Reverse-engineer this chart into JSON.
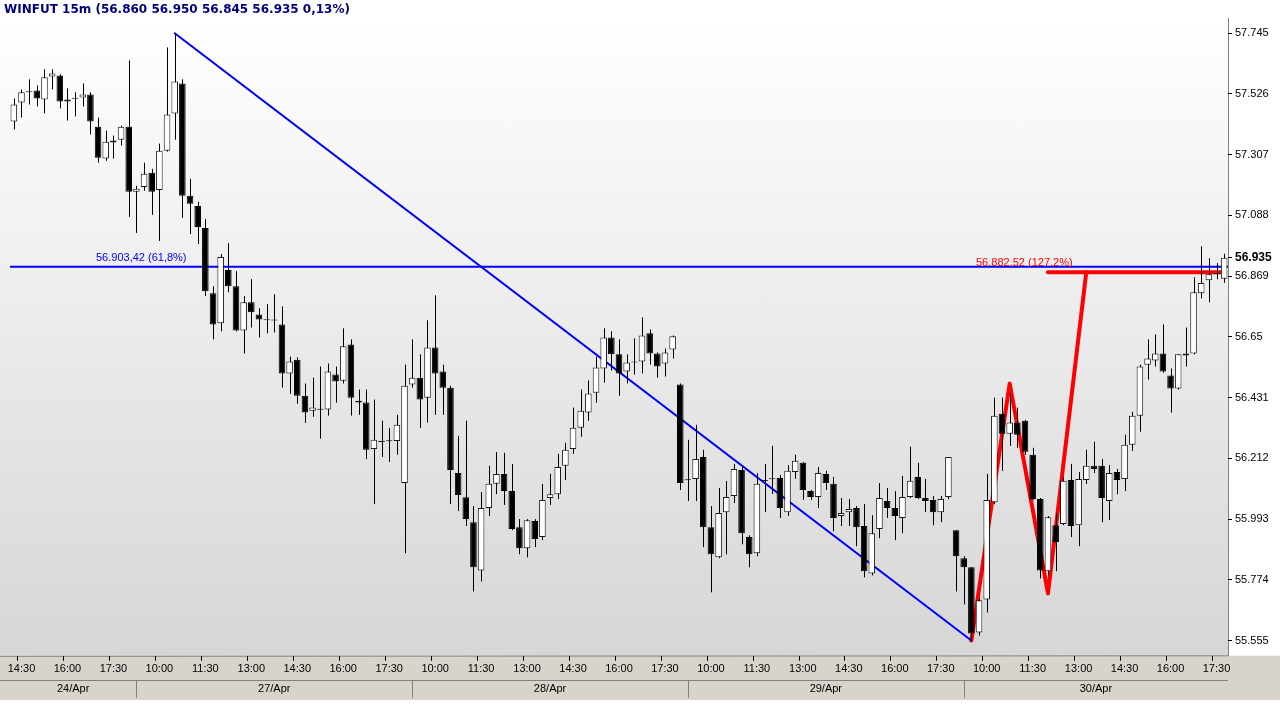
{
  "chart_data": {
    "type": "candlestick",
    "title": "WINFUT 15m (56.860 56.950 56.845 56.935 0,13%)",
    "categories": [
      null,
      "14:30",
      null,
      null,
      null,
      null,
      null,
      "16:00",
      null,
      null,
      null,
      null,
      null,
      "17:30",
      null,
      null,
      null,
      null,
      null,
      "10:00",
      null,
      null,
      null,
      null,
      null,
      "11:30",
      null,
      null,
      null,
      null,
      null,
      "13:00",
      null,
      null,
      null,
      null,
      null,
      "14:30",
      null,
      null,
      null,
      null,
      null,
      "16:00",
      null,
      null,
      null,
      null,
      null,
      "17:30",
      null,
      null,
      null,
      null,
      null,
      "10:00",
      null,
      null,
      null,
      null,
      null,
      "11:30",
      null,
      null,
      null,
      null,
      null,
      "13:00",
      null,
      null,
      null,
      null,
      null,
      "14:30",
      null,
      null,
      null,
      null,
      null,
      "16:00",
      null,
      null,
      null,
      null,
      null,
      "17:30",
      null,
      null,
      null,
      null,
      null,
      "10:00",
      null,
      null,
      null,
      null,
      null,
      "11:30",
      null,
      null,
      null,
      null,
      null,
      "13:00",
      null,
      null,
      null,
      null,
      null,
      "14:30",
      null,
      null,
      null,
      null,
      null,
      "16:00",
      null,
      null,
      null,
      null,
      null,
      "17:30",
      null,
      null,
      null,
      null,
      null,
      "10:00",
      null,
      null,
      null,
      null,
      null,
      "11:30",
      null,
      null,
      null,
      null,
      null,
      "13:00",
      null,
      null,
      null,
      null,
      null,
      "14:30",
      null,
      null,
      null,
      null,
      null,
      "16:00",
      null,
      null,
      null,
      null,
      null,
      "17:30",
      null
    ],
    "ohlc": [
      [
        57.427,
        57.51,
        57.398,
        57.488
      ],
      [
        57.495,
        57.542,
        57.441,
        57.532
      ],
      [
        57.535,
        57.579,
        57.488,
        57.532
      ],
      [
        57.539,
        57.557,
        57.481,
        57.51
      ],
      [
        57.506,
        57.615,
        57.456,
        57.586
      ],
      [
        57.589,
        57.615,
        57.542,
        57.6
      ],
      [
        57.593,
        57.597,
        57.474,
        57.499
      ],
      [
        57.499,
        57.546,
        57.43,
        57.506
      ],
      [
        57.51,
        57.532,
        57.445,
        57.509
      ],
      [
        57.513,
        57.564,
        57.481,
        57.524
      ],
      [
        57.524,
        57.532,
        57.38,
        57.427
      ],
      [
        57.408,
        57.441,
        57.278,
        57.296
      ],
      [
        57.293,
        57.394,
        57.285,
        57.354
      ],
      [
        57.351,
        57.376,
        57.293,
        57.358
      ],
      [
        57.361,
        57.412,
        57.34,
        57.408
      ],
      [
        57.408,
        57.647,
        57.083,
        57.173
      ],
      [
        57.173,
        57.195,
        57.025,
        57.184
      ],
      [
        57.191,
        57.278,
        57.177,
        57.238
      ],
      [
        57.242,
        57.256,
        57.09,
        57.173
      ],
      [
        57.18,
        57.347,
        56.996,
        57.321
      ],
      [
        57.321,
        57.694,
        57.318,
        57.452
      ],
      [
        57.456,
        57.745,
        57.361,
        57.571
      ],
      [
        57.564,
        57.579,
        57.079,
        57.159
      ],
      [
        57.159,
        57.22,
        57.021,
        57.13
      ],
      [
        57.122,
        57.137,
        56.985,
        57.046
      ],
      [
        57.043,
        57.075,
        56.797,
        56.815
      ],
      [
        56.807,
        56.833,
        56.641,
        56.695
      ],
      [
        56.699,
        56.949,
        56.67,
        56.938
      ],
      [
        56.891,
        56.988,
        56.811,
        56.833
      ],
      [
        56.833,
        56.887,
        56.67,
        56.673
      ],
      [
        56.673,
        56.797,
        56.59,
        56.775
      ],
      [
        56.775,
        56.858,
        56.684,
        56.739
      ],
      [
        56.731,
        56.753,
        56.648,
        56.713
      ],
      [
        56.713,
        56.768,
        56.663,
        56.71
      ],
      [
        56.71,
        56.804,
        56.666,
        56.709
      ],
      [
        56.695,
        56.76,
        56.467,
        56.518
      ],
      [
        56.518,
        56.579,
        56.445,
        56.561
      ],
      [
        56.568,
        56.576,
        56.409,
        56.438
      ],
      [
        56.438,
        56.482,
        56.34,
        56.377
      ],
      [
        56.384,
        56.503,
        56.362,
        56.395
      ],
      [
        56.388,
        56.543,
        56.283,
        56.387
      ],
      [
        56.388,
        56.554,
        56.366,
        56.525
      ],
      [
        56.514,
        56.543,
        56.413,
        56.489
      ],
      [
        56.492,
        56.681,
        56.482,
        56.616
      ],
      [
        56.623,
        56.641,
        56.366,
        56.431
      ],
      [
        56.42,
        56.46,
        56.369,
        56.413
      ],
      [
        56.413,
        56.46,
        56.21,
        56.243
      ],
      [
        56.246,
        56.424,
        56.047,
        56.279
      ],
      [
        56.272,
        56.348,
        56.217,
        56.271
      ],
      [
        56.275,
        56.322,
        56.199,
        56.274
      ],
      [
        56.275,
        56.369,
        56.225,
        56.333
      ],
      [
        56.123,
        56.55,
        55.87,
        56.474
      ],
      [
        56.478,
        56.641,
        56.467,
        56.503
      ],
      [
        56.503,
        56.587,
        56.322,
        56.424
      ],
      [
        56.431,
        56.71,
        56.341,
        56.612
      ],
      [
        56.612,
        56.8,
        56.369,
        56.518
      ],
      [
        56.525,
        56.55,
        56.369,
        56.467
      ],
      [
        56.467,
        56.474,
        56.047,
        56.17
      ],
      [
        56.159,
        56.293,
        56.022,
        56.08
      ],
      [
        56.072,
        56.348,
        55.968,
        55.993
      ],
      [
        55.982,
        56.04,
        55.732,
        55.819
      ],
      [
        55.808,
        56.091,
        55.768,
        56.033
      ],
      [
        56.033,
        56.185,
        56.004,
        56.12
      ],
      [
        56.12,
        56.235,
        56.083,
        56.156
      ],
      [
        56.156,
        56.232,
        56.044,
        56.094
      ],
      [
        56.094,
        56.192,
        55.953,
        55.957
      ],
      [
        55.964,
        55.993,
        55.866,
        55.888
      ],
      [
        55.888,
        55.993,
        55.855,
        55.989
      ],
      [
        55.986,
        55.993,
        55.892,
        55.921
      ],
      [
        55.928,
        56.12,
        55.917,
        56.062
      ],
      [
        56.069,
        56.156,
        56.044,
        56.083
      ],
      [
        56.083,
        56.228,
        56.065,
        56.181
      ],
      [
        56.185,
        56.268,
        56.134,
        56.243
      ],
      [
        56.246,
        56.395,
        56.228,
        56.322
      ],
      [
        56.322,
        56.46,
        56.29,
        56.384
      ],
      [
        56.377,
        56.493,
        56.348,
        56.446
      ],
      [
        56.449,
        56.579,
        56.413,
        56.54
      ],
      [
        56.536,
        56.681,
        56.485,
        56.648
      ],
      [
        56.648,
        56.67,
        56.529,
        56.587
      ],
      [
        56.587,
        56.641,
        56.438,
        56.518
      ],
      [
        56.525,
        56.587,
        56.482,
        56.558
      ],
      [
        56.558,
        56.645,
        56.514,
        56.561
      ],
      [
        56.561,
        56.72,
        56.518,
        56.655
      ],
      [
        56.663,
        56.677,
        56.55,
        56.59
      ],
      [
        56.59,
        56.594,
        56.503,
        56.543
      ],
      [
        56.554,
        56.608,
        56.507,
        56.594
      ],
      [
        56.605,
        56.655,
        56.572,
        56.652
      ],
      [
        56.478,
        56.482,
        56.098,
        56.123
      ],
      [
        56.134,
        56.279,
        56.058,
        56.133
      ],
      [
        56.138,
        56.333,
        56.058,
        56.21
      ],
      [
        56.217,
        56.243,
        55.892,
        55.964
      ],
      [
        55.964,
        56.04,
        55.729,
        55.866
      ],
      [
        55.855,
        56.105,
        55.852,
        56.015
      ],
      [
        56.018,
        56.13,
        55.866,
        56.073
      ],
      [
        56.076,
        56.192,
        56.051,
        56.174
      ],
      [
        56.17,
        56.185,
        55.902,
        55.942
      ],
      [
        55.928,
        55.935,
        55.819,
        55.866
      ],
      [
        55.87,
        56.159,
        55.859,
        56.12
      ],
      [
        56.13,
        56.192,
        56.018,
        56.131
      ],
      [
        56.138,
        56.257,
        56.083,
        56.137
      ],
      [
        56.141,
        56.152,
        55.997,
        56.033
      ],
      [
        56.018,
        56.188,
        56.004,
        56.167
      ],
      [
        56.163,
        56.225,
        56.138,
        56.203
      ],
      [
        56.196,
        56.199,
        56.062,
        56.098
      ],
      [
        56.094,
        56.098,
        56.062,
        56.073
      ],
      [
        56.073,
        56.181,
        56.033,
        56.159
      ],
      [
        56.156,
        56.167,
        56.098,
        56.123
      ],
      [
        56.12,
        56.145,
        55.949,
        55.997
      ],
      [
        56.004,
        56.069,
        55.968,
        56.015
      ],
      [
        56.018,
        56.065,
        55.968,
        56.029
      ],
      [
        56.033,
        56.04,
        55.895,
        55.964
      ],
      [
        55.968,
        56.047,
        55.783,
        55.805
      ],
      [
        55.797,
        56.007,
        55.79,
        55.942
      ],
      [
        55.957,
        56.123,
        55.924,
        56.069
      ],
      [
        56.058,
        56.105,
        55.997,
        56.033
      ],
      [
        56.033,
        56.094,
        55.917,
        56.004
      ],
      [
        55.997,
        56.149,
        55.942,
        56.073
      ],
      [
        56.073,
        56.254,
        56.069,
        56.131
      ],
      [
        56.145,
        56.196,
        56.065,
        56.069
      ],
      [
        56.069,
        56.138,
        56.018,
        56.058
      ],
      [
        56.062,
        56.076,
        55.971,
        56.018
      ],
      [
        56.018,
        56.076,
        55.982,
        56.065
      ],
      [
        56.073,
        56.217,
        56.065,
        56.217
      ],
      [
        55.953,
        55.953,
        55.732,
        55.859
      ],
      [
        55.852,
        55.859,
        55.685,
        55.819
      ],
      [
        55.819,
        55.819,
        55.555,
        55.58
      ],
      [
        55.584,
        55.707,
        55.573,
        55.7
      ],
      [
        55.703,
        56.156,
        55.656,
        56.062
      ],
      [
        56.054,
        56.431,
        56.047,
        56.366
      ],
      [
        56.373,
        56.431,
        56.167,
        56.301
      ],
      [
        56.301,
        56.446,
        56.257,
        56.341
      ],
      [
        56.341,
        56.395,
        56.25,
        56.297
      ],
      [
        56.348,
        56.351,
        56.225,
        56.236
      ],
      [
        56.225,
        56.25,
        56.062,
        56.065
      ],
      [
        56.065,
        56.069,
        55.779,
        55.808
      ],
      [
        55.805,
        56.004,
        55.79,
        56.0
      ],
      [
        55.971,
        56.015,
        55.805,
        55.91
      ],
      [
        55.975,
        56.145,
        55.971,
        56.131
      ],
      [
        56.134,
        56.192,
        55.928,
        55.968
      ],
      [
        55.971,
        56.163,
        55.895,
        56.138
      ],
      [
        56.134,
        56.243,
        56.12,
        56.185
      ],
      [
        56.185,
        56.272,
        56.159,
        56.174
      ],
      [
        56.185,
        56.21,
        55.982,
        56.069
      ],
      [
        56.058,
        56.188,
        55.989,
        56.159
      ],
      [
        56.163,
        56.174,
        56.083,
        56.134
      ],
      [
        56.138,
        56.297,
        56.094,
        56.261
      ],
      [
        56.261,
        56.38,
        56.239,
        56.366
      ],
      [
        56.366,
        56.55,
        56.308,
        56.543
      ],
      [
        56.55,
        56.641,
        56.496,
        56.572
      ],
      [
        56.565,
        56.659,
        56.543,
        56.59
      ],
      [
        56.59,
        56.695,
        56.521,
        56.525
      ],
      [
        56.511,
        56.536,
        56.377,
        56.464
      ],
      [
        56.464,
        56.587,
        56.46,
        56.587
      ],
      [
        56.583,
        56.684,
        56.543,
        56.59
      ],
      [
        56.59,
        56.865,
        56.587,
        56.811
      ],
      [
        56.807,
        56.977,
        56.789,
        56.844
      ],
      [
        56.854,
        56.934,
        56.775,
        56.876
      ],
      [
        56.876,
        56.916,
        56.858,
        56.88
      ],
      [
        56.86,
        56.95,
        56.845,
        56.935
      ]
    ],
    "ylim": [
      55.5,
      57.8
    ],
    "yticks": [
      55.555,
      55.774,
      55.993,
      56.212,
      56.431,
      56.65,
      56.869,
      56.935,
      57.088,
      57.307,
      57.526,
      57.745
    ],
    "series": [
      {
        "type": "line",
        "color": "#0000ff",
        "values": [
          null,
          null,
          null,
          null,
          null,
          null,
          null,
          null,
          null,
          null,
          null,
          null,
          null,
          null,
          null,
          null,
          null,
          null,
          null,
          null,
          null,
          57.745,
          null,
          null,
          null,
          null,
          null,
          null,
          null,
          null,
          null,
          null,
          null,
          null,
          null,
          null,
          null,
          null,
          null,
          null,
          null,
          null,
          null,
          null,
          null,
          null,
          null,
          null,
          null,
          null,
          null,
          null,
          null,
          null,
          null,
          null,
          null,
          null,
          null,
          null,
          null,
          null,
          null,
          null,
          null,
          null,
          null,
          null,
          null,
          null,
          null,
          null,
          null,
          null,
          null,
          null,
          null,
          null,
          null,
          null,
          null,
          null,
          null,
          null,
          null,
          null,
          null,
          null,
          null,
          null,
          null,
          null,
          null,
          null,
          null,
          null,
          null,
          null,
          null,
          null,
          null,
          null,
          null,
          null,
          null,
          null,
          null,
          null,
          null,
          null,
          null,
          null,
          null,
          null,
          null,
          null,
          null,
          null,
          null,
          null,
          null,
          null,
          null,
          null,
          null,
          55.555,
          null,
          null,
          null,
          null,
          null,
          null,
          null,
          null,
          null,
          null,
          null,
          null,
          null,
          null,
          null,
          null,
          null,
          null,
          null,
          null,
          null,
          null,
          null,
          null,
          null,
          null,
          null,
          null,
          null,
          null,
          null,
          null,
          null
        ]
      },
      {
        "type": "line",
        "color": "#ff0000",
        "values": [
          null,
          null,
          null,
          null,
          null,
          null,
          null,
          null,
          null,
          null,
          null,
          null,
          null,
          null,
          null,
          null,
          null,
          null,
          null,
          null,
          null,
          null,
          null,
          null,
          null,
          null,
          null,
          null,
          null,
          null,
          null,
          null,
          null,
          null,
          null,
          null,
          null,
          null,
          null,
          null,
          null,
          null,
          null,
          null,
          null,
          null,
          null,
          null,
          null,
          null,
          null,
          null,
          null,
          null,
          null,
          null,
          null,
          null,
          null,
          null,
          null,
          null,
          null,
          null,
          null,
          null,
          null,
          null,
          null,
          null,
          null,
          null,
          null,
          null,
          null,
          null,
          null,
          null,
          null,
          null,
          null,
          null,
          null,
          null,
          null,
          null,
          null,
          null,
          null,
          null,
          null,
          null,
          null,
          null,
          null,
          null,
          null,
          null,
          null,
          null,
          null,
          null,
          null,
          null,
          null,
          null,
          null,
          null,
          null,
          null,
          null,
          null,
          null,
          null,
          null,
          null,
          null,
          null,
          null,
          null,
          null,
          null,
          null,
          null,
          null,
          55.555,
          null,
          null,
          null,
          null,
          56.482,
          null,
          null,
          null,
          null,
          55.725,
          null,
          null,
          null,
          null,
          56.883,
          null,
          null,
          null,
          null,
          null,
          null,
          null,
          null,
          null,
          null,
          null,
          null,
          null,
          null,
          null,
          null,
          null,
          null
        ]
      },
      {
        "type": "line",
        "color": "#ff0000",
        "values": [
          null,
          null,
          null,
          null,
          null,
          null,
          null,
          null,
          null,
          null,
          null,
          null,
          null,
          null,
          null,
          null,
          null,
          null,
          null,
          null,
          null,
          null,
          null,
          null,
          null,
          null,
          null,
          null,
          null,
          null,
          null,
          null,
          null,
          null,
          null,
          null,
          null,
          null,
          null,
          null,
          null,
          null,
          null,
          null,
          null,
          null,
          null,
          null,
          null,
          null,
          null,
          null,
          null,
          null,
          null,
          null,
          null,
          null,
          null,
          null,
          null,
          null,
          null,
          null,
          null,
          null,
          null,
          null,
          null,
          null,
          null,
          null,
          null,
          null,
          null,
          null,
          null,
          null,
          null,
          null,
          null,
          null,
          null,
          null,
          null,
          null,
          null,
          null,
          null,
          null,
          null,
          null,
          null,
          null,
          null,
          null,
          null,
          null,
          null,
          null,
          null,
          null,
          null,
          null,
          null,
          null,
          null,
          null,
          null,
          null,
          null,
          null,
          null,
          null,
          null,
          null,
          null,
          null,
          null,
          null,
          null,
          null,
          null,
          null,
          null,
          null,
          null,
          null,
          null,
          null,
          null,
          null,
          null,
          null,
          null,
          56.883,
          null,
          null,
          null,
          null,
          null,
          null,
          null,
          null,
          null,
          null,
          null,
          null,
          null,
          null,
          null,
          null,
          null,
          null,
          null,
          null,
          null,
          null,
          56.883
        ]
      }
    ],
    "ref_lines": [
      {
        "axis": "y",
        "value": 56.90342,
        "label": "56.903,42 (61,8%)",
        "color": "#0000ff"
      }
    ],
    "annotations": [
      "24/Apr",
      "27/Apr",
      "28/Apr",
      "29/Apr",
      "30/Apr",
      "56.882,52 (127,2%)"
    ]
  }
}
